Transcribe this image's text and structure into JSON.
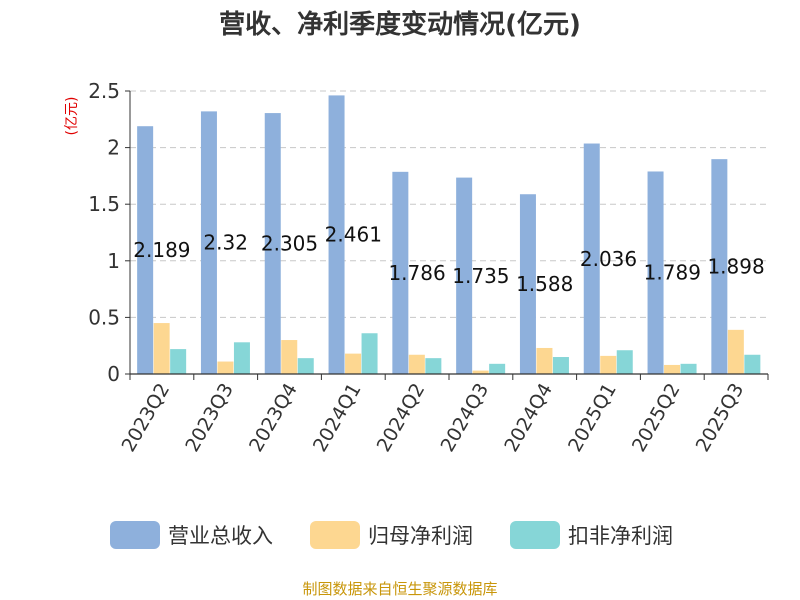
{
  "chart_data": {
    "type": "bar",
    "title": "营收、净利季度变动情况(亿元)",
    "ylabel": "(亿元)",
    "ylim": [
      0,
      2.5
    ],
    "yticks": [
      "0",
      "0.5",
      "1",
      "1.5",
      "2",
      "2.5"
    ],
    "grid": true,
    "legend_position": "bottom",
    "categories": [
      "2023Q2",
      "2023Q3",
      "2023Q4",
      "2024Q1",
      "2024Q2",
      "2024Q3",
      "2024Q4",
      "2025Q1",
      "2025Q2",
      "2025Q3"
    ],
    "series": [
      {
        "name": "营业总收入",
        "color": "#8eb0dc",
        "values": [
          2.189,
          2.32,
          2.305,
          2.461,
          1.786,
          1.735,
          1.588,
          2.036,
          1.789,
          1.898
        ],
        "labels": [
          "2.189",
          "2.32",
          "2.305",
          "2.461",
          "1.786",
          "1.735",
          "1.588",
          "2.036",
          "1.789",
          "1.898"
        ]
      },
      {
        "name": "归母净利润",
        "color": "#fdd791",
        "values": [
          0.45,
          0.11,
          0.3,
          0.18,
          0.17,
          0.03,
          0.23,
          0.16,
          0.08,
          0.39
        ]
      },
      {
        "name": "扣非净利润",
        "color": "#86d6d7",
        "values": [
          0.22,
          0.28,
          0.14,
          0.36,
          0.14,
          0.09,
          0.15,
          0.21,
          0.09,
          0.17
        ]
      }
    ]
  },
  "source": {
    "text": "制图数据来自恒生聚源数据库",
    "color": "#c8960a"
  }
}
